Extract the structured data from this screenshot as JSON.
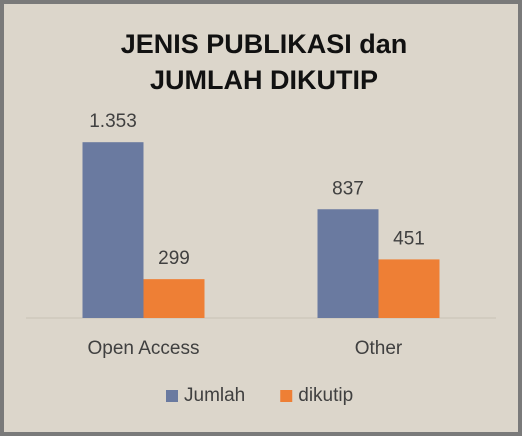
{
  "chart_data": {
    "type": "bar",
    "title": "JENIS PUBLIKASI dan JUMLAH DIKUTIP",
    "categories": [
      "Open Access",
      "Other"
    ],
    "series": [
      {
        "name": "Jumlah",
        "color": "#6a7aa0",
        "values": [
          1353,
          837
        ],
        "value_labels": [
          "1.353",
          "837"
        ]
      },
      {
        "name": "dikutip",
        "color": "#ee7f35",
        "values": [
          299,
          451
        ]
      }
    ],
    "legend": "bottom"
  }
}
